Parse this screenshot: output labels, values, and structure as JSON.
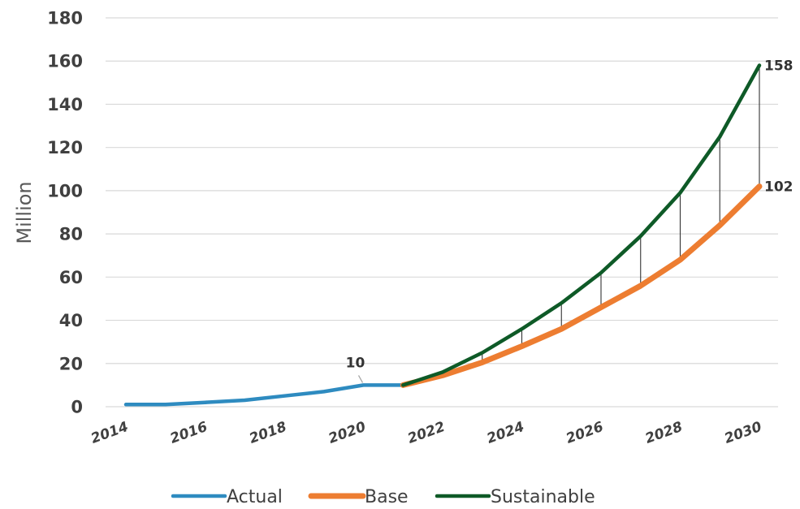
{
  "chart_data": {
    "type": "line",
    "title": "",
    "xlabel": "",
    "ylabel": "Million",
    "ylim": [
      0,
      180
    ],
    "yticks": [
      0,
      20,
      40,
      60,
      80,
      100,
      120,
      140,
      160,
      180
    ],
    "xlim": [
      2014,
      2030
    ],
    "xticks": [
      2014,
      2016,
      2018,
      2020,
      2022,
      2024,
      2026,
      2028,
      2030
    ],
    "xtick_labels": [
      "2014",
      "2016",
      "2018",
      "2020",
      "2022",
      "2024",
      "2026",
      "2028",
      "2030"
    ],
    "ytick_labels": [
      "0",
      "20",
      "40",
      "60",
      "80",
      "100",
      "120",
      "140",
      "160",
      "180"
    ],
    "grid": true,
    "legend_position": "bottom",
    "series": [
      {
        "name": "Actual",
        "color": "#2e8bc0",
        "x": [
          2014,
          2015,
          2016,
          2017,
          2018,
          2019,
          2020,
          2021
        ],
        "y": [
          1,
          1,
          2,
          3,
          5,
          7,
          10,
          10
        ]
      },
      {
        "name": "Base",
        "color": "#ed7d31",
        "x": [
          2021,
          2022,
          2023,
          2024,
          2025,
          2026,
          2027,
          2028,
          2029,
          2030
        ],
        "y": [
          10,
          14.5,
          20.5,
          28,
          36,
          46,
          56,
          68,
          84,
          102
        ]
      },
      {
        "name": "Sustainable",
        "color": "#0e5a27",
        "x": [
          2021,
          2022,
          2023,
          2024,
          2025,
          2026,
          2027,
          2028,
          2029,
          2030
        ],
        "y": [
          10,
          16,
          25,
          36,
          48,
          62,
          79,
          99,
          125,
          158
        ]
      }
    ],
    "annotations": [
      {
        "text": "10",
        "x": 2020,
        "y": 10
      },
      {
        "text": "158",
        "x": 2030,
        "y": 158
      },
      {
        "text": "102",
        "x": 2030,
        "y": 102
      }
    ],
    "drop_lines": {
      "color": "#333333",
      "between": [
        "Sustainable",
        "Base"
      ],
      "x": [
        2023,
        2024,
        2025,
        2026,
        2027,
        2028,
        2029,
        2030
      ]
    }
  }
}
